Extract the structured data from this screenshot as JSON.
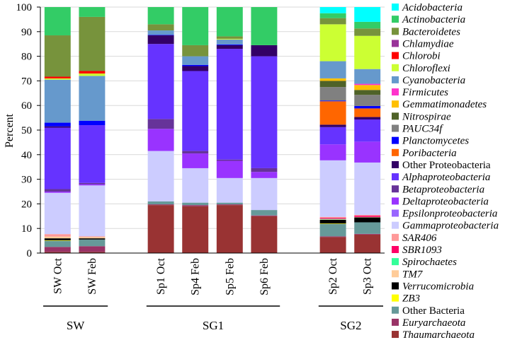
{
  "chart_data": {
    "type": "bar",
    "stacked": true,
    "title": "",
    "xlabel": "",
    "ylabel": "Percent",
    "ylim": [
      0,
      100
    ],
    "yticks": [
      0,
      10,
      20,
      30,
      40,
      50,
      60,
      70,
      80,
      90,
      100
    ],
    "grid": true,
    "legend_position": "right",
    "categories": [
      "SW Oct",
      "SW Feb",
      "Sp1 Oct",
      "Sp4 Feb",
      "Sp5 Feb",
      "Sp6 Feb",
      "Sp2 Oct",
      "Sp3 Oct"
    ],
    "groups": [
      {
        "name": "SW",
        "categories": [
          0,
          1
        ]
      },
      {
        "name": "SG1",
        "categories": [
          2,
          3,
          4,
          5
        ]
      },
      {
        "name": "SG2",
        "categories": [
          6,
          7
        ]
      }
    ],
    "series": [
      {
        "name": "Acidobacteria",
        "color": "#00FFFF",
        "values": [
          0,
          0,
          0,
          0,
          0,
          0,
          2.5,
          6.0
        ]
      },
      {
        "name": "Actinobacteria",
        "color": "#33CC66",
        "values": [
          11.5,
          4.0,
          7.0,
          15.5,
          11.9,
          15.5,
          2.0,
          2.7
        ]
      },
      {
        "name": "Bacteroidetes",
        "color": "#77933C",
        "values": [
          16.8,
          22.0,
          2.5,
          4.5,
          1.0,
          0,
          2.5,
          3.0
        ]
      },
      {
        "name": "Chlamydiae",
        "color": "#993399",
        "values": [
          0,
          0,
          0,
          0,
          0,
          0,
          0,
          0
        ]
      },
      {
        "name": "Chlorobi",
        "color": "#FF0000",
        "values": [
          0.7,
          1.0,
          0,
          0,
          0,
          0,
          0,
          0
        ]
      },
      {
        "name": "Chloroflexi",
        "color": "#CCFF33",
        "values": [
          0.5,
          1.0,
          0,
          0,
          0.3,
          0,
          15.0,
          13.5
        ]
      },
      {
        "name": "Cyanobacteria",
        "color": "#6699CC",
        "values": [
          17.5,
          18.2,
          1.8,
          3.5,
          2.0,
          0,
          7.0,
          6.0
        ]
      },
      {
        "name": "Firmicutes",
        "color": "#FF33CC",
        "values": [
          0,
          0,
          0,
          0,
          0,
          0,
          0,
          0.5
        ]
      },
      {
        "name": "Gemmatimonadetes",
        "color": "#FFC000",
        "values": [
          0,
          0,
          0,
          0,
          0,
          0,
          1.0,
          2.0
        ]
      },
      {
        "name": "Nitrospirae",
        "color": "#4F6228",
        "values": [
          0,
          0,
          0,
          0,
          0,
          0,
          2.5,
          2.0
        ]
      },
      {
        "name": "PAUC34f",
        "color": "#808080",
        "values": [
          0,
          0,
          0,
          0,
          0,
          0,
          5.5,
          4.5
        ]
      },
      {
        "name": "Planctomycetes",
        "color": "#0000FF",
        "values": [
          1.5,
          1.8,
          0.2,
          0.5,
          0.3,
          0,
          0.3,
          1.0
        ]
      },
      {
        "name": "Poribacteria",
        "color": "#FF6600",
        "values": [
          0,
          0,
          0,
          0,
          0,
          0,
          9.5,
          3.5
        ]
      },
      {
        "name": "Other Proteobacteria",
        "color": "#330066",
        "values": [
          0.5,
          0,
          3.5,
          2.0,
          1.5,
          4.5,
          1.0,
          1.0
        ]
      },
      {
        "name": "Alphaproteobacteria",
        "color": "#6633FF",
        "values": [
          25.0,
          23.5,
          30.5,
          32.5,
          45.0,
          45.5,
          7.0,
          9.0
        ]
      },
      {
        "name": "Betaproteobacteria",
        "color": "#663399",
        "values": [
          1.0,
          0.5,
          4.0,
          1.0,
          0.5,
          1.5,
          0,
          0
        ]
      },
      {
        "name": "Deltaproteobacteria",
        "color": "#9933FF",
        "values": [
          0.5,
          0.5,
          9.0,
          6.0,
          7.0,
          2.5,
          6.5,
          8.5
        ]
      },
      {
        "name": "Epsilonproteobacteria",
        "color": "#9966FF",
        "values": [
          0,
          0,
          0,
          0,
          0,
          0,
          0,
          0
        ]
      },
      {
        "name": "Gammaproteobacteria",
        "color": "#CCCCFF",
        "values": [
          16.8,
          20.7,
          20.5,
          14.0,
          10.0,
          13.0,
          23.0,
          21.3
        ]
      },
      {
        "name": "SAR406",
        "color": "#FF9999",
        "values": [
          1.0,
          0.3,
          0,
          0,
          0,
          0,
          0.4,
          0.3
        ]
      },
      {
        "name": "SBR1093",
        "color": "#FF0066",
        "values": [
          0,
          0,
          0,
          0,
          0,
          0,
          0.4,
          0.5
        ]
      },
      {
        "name": "Spirochaetes",
        "color": "#33FF99",
        "values": [
          0,
          0,
          0,
          0,
          0,
          0,
          0.2,
          0
        ]
      },
      {
        "name": "TM7",
        "color": "#FFCC99",
        "values": [
          0.7,
          0.5,
          0,
          0,
          0,
          0,
          0.2,
          0.2
        ]
      },
      {
        "name": "Verrucomicrobia",
        "color": "#000000",
        "values": [
          0.8,
          0.5,
          0,
          0,
          0,
          0,
          1.5,
          2.0
        ]
      },
      {
        "name": "ZB3",
        "color": "#FFFF00",
        "values": [
          0.2,
          0,
          0,
          0,
          0,
          0,
          0.2,
          0
        ]
      },
      {
        "name": "Other Bacteria",
        "color": "#669999",
        "values": [
          2.5,
          2.7,
          1.2,
          1.0,
          0.7,
          2.2,
          5.0,
          4.7
        ]
      },
      {
        "name": "Euryarchaeota",
        "color": "#993366",
        "values": [
          2.0,
          2.3,
          0.3,
          0.5,
          0.3,
          0.3,
          0.3,
          0.3
        ]
      },
      {
        "name": "Thaumarchaeota",
        "color": "#993333",
        "values": [
          0.5,
          0.5,
          19.5,
          19.0,
          19.5,
          15.0,
          6.5,
          7.5
        ]
      }
    ]
  }
}
